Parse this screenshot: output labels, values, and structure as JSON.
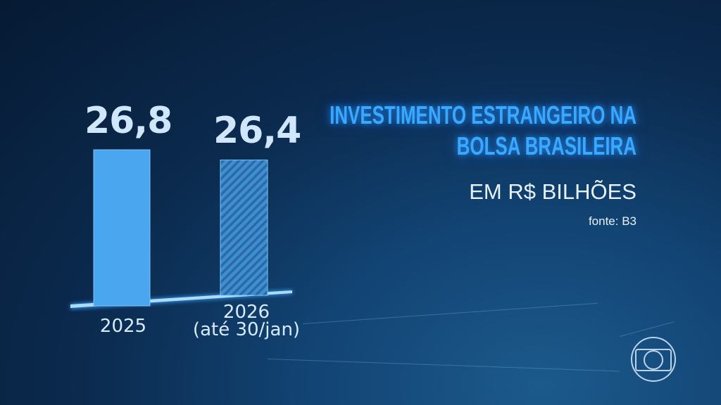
{
  "chart_data": {
    "type": "bar",
    "title": "INVESTIMENTO ESTRANGEIRO NA BOLSA BRASILEIRA",
    "subtitle": "EM R$ BILHÕES",
    "source": "fonte: B3",
    "categories": [
      "2025",
      "2026"
    ],
    "category_notes": [
      "",
      "(até 30/jan)"
    ],
    "values": [
      26.8,
      26.4
    ],
    "value_labels": [
      "26,8",
      "26,4"
    ],
    "bar_styles": [
      "solid",
      "hatched"
    ],
    "colors": {
      "bar": "#4aa6ee",
      "title": "#3aa8ff",
      "label": "#cfe6fb"
    }
  },
  "logo": {
    "name": "globo-logo"
  }
}
